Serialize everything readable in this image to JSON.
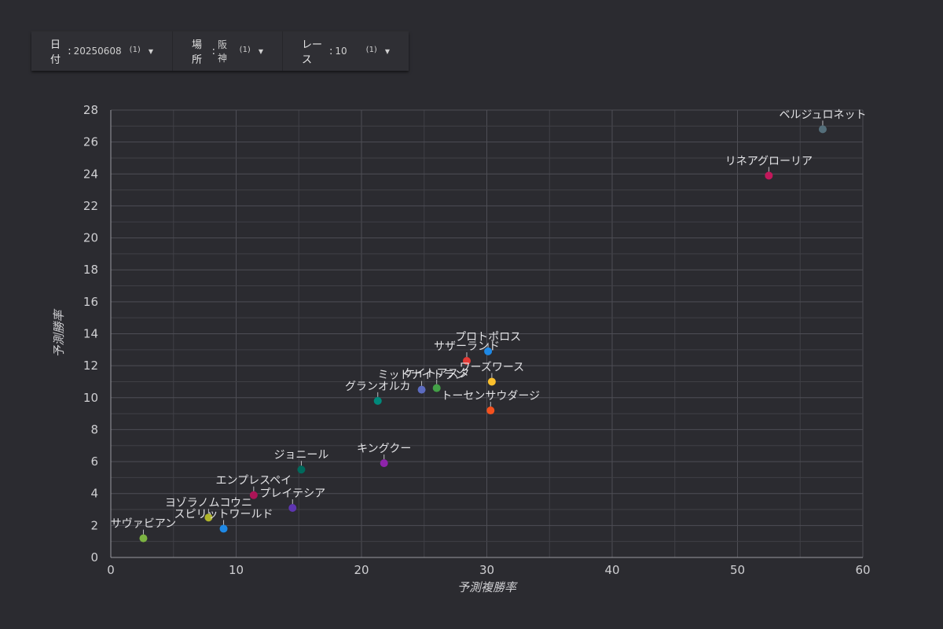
{
  "filters": [
    {
      "label": "日付",
      "value": "20250608",
      "count": "(1)",
      "icon": "caret-down-icon"
    },
    {
      "label": "場所",
      "value": "阪神",
      "count": "(1)",
      "icon": "caret-down-icon"
    },
    {
      "label": "レース",
      "value": "10",
      "count": "(1)",
      "icon": "caret-down-icon"
    }
  ],
  "chart_data": {
    "type": "scatter",
    "xlabel": "予測複勝率",
    "ylabel": "予測勝率",
    "xlim": [
      0,
      60
    ],
    "ylim": [
      0,
      28
    ],
    "x_ticks": [
      "0",
      "10",
      "20",
      "30",
      "40",
      "50",
      "60"
    ],
    "y_ticks": [
      "0",
      "2",
      "4",
      "6",
      "8",
      "10",
      "12",
      "14",
      "16",
      "18",
      "20",
      "22",
      "24",
      "26",
      "28"
    ],
    "grid": true,
    "points": [
      {
        "label": "ベルジュロネット",
        "x": 56.8,
        "y": 26.8,
        "color": "#546e7a"
      },
      {
        "label": "リネアグローリア",
        "x": 52.5,
        "y": 23.9,
        "color": "#c2185b"
      },
      {
        "label": "プロトポロス",
        "x": 30.1,
        "y": 12.9,
        "color": "#1e88e5"
      },
      {
        "label": "サザーランド",
        "x": 28.4,
        "y": 12.3,
        "color": "#e53935"
      },
      {
        "label": "ワーズワース",
        "x": 30.4,
        "y": 11.0,
        "color": "#fbc02d"
      },
      {
        "label": "トーセンサウダージ",
        "x": 30.3,
        "y": 9.2,
        "color": "#f4511e"
      },
      {
        "label": "ケイトアスタ",
        "x": 26.0,
        "y": 10.6,
        "color": "#43a047"
      },
      {
        "label": "ミッドナイトラン",
        "x": 24.8,
        "y": 10.5,
        "color": "#5c6bc0"
      },
      {
        "label": "グランオルカ",
        "x": 21.3,
        "y": 9.8,
        "color": "#00897b"
      },
      {
        "label": "キングクー",
        "x": 21.8,
        "y": 5.9,
        "color": "#8e24aa"
      },
      {
        "label": "ジョニール",
        "x": 15.2,
        "y": 5.5,
        "color": "#00695c"
      },
      {
        "label": "エンプレスペイ",
        "x": 11.4,
        "y": 3.9,
        "color": "#ad1457"
      },
      {
        "label": "プレイテシア",
        "x": 14.5,
        "y": 3.1,
        "color": "#5e35b1"
      },
      {
        "label": "ヨゾラノムコウニ",
        "x": 7.8,
        "y": 2.5,
        "color": "#afb42b"
      },
      {
        "label": "スピリットワールド",
        "x": 9.0,
        "y": 1.8,
        "color": "#1e88e5"
      },
      {
        "label": "サヴァビアン",
        "x": 2.6,
        "y": 1.2,
        "color": "#7cb342"
      }
    ]
  }
}
